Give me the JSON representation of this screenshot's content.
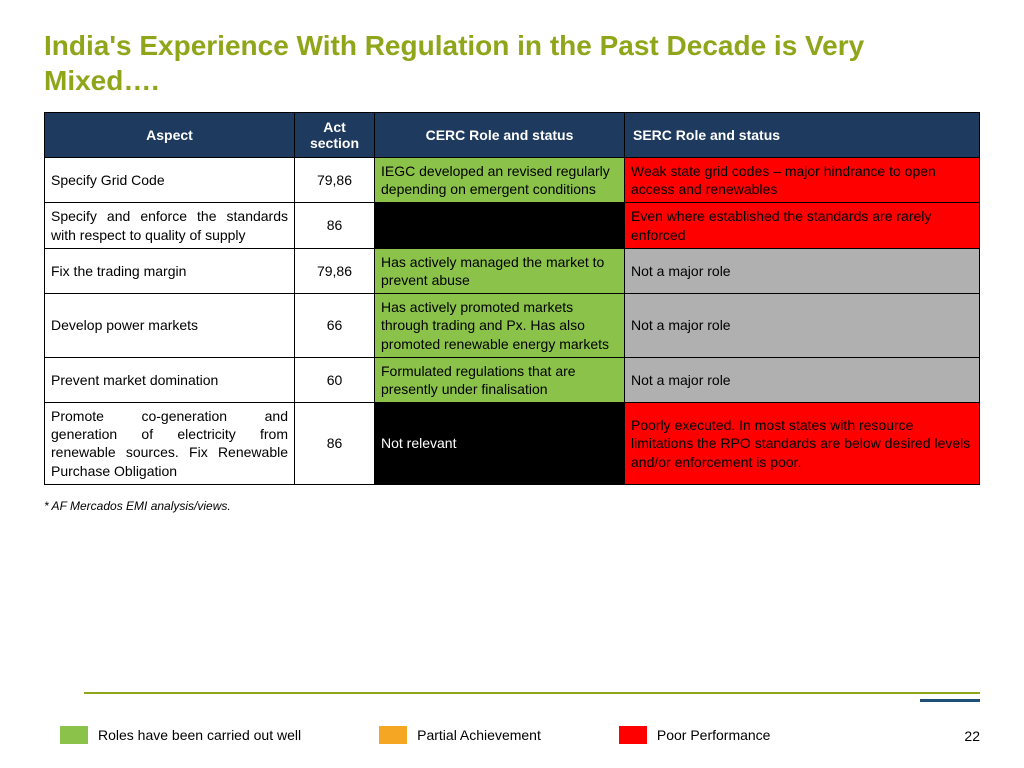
{
  "title": "India's Experience With Regulation in the Past Decade is Very Mixed….",
  "title_color": "#8fa61a",
  "table": {
    "header_bg": "#1f3a5f",
    "header_fg": "#ffffff",
    "columns": [
      "Aspect",
      "Act section",
      "CERC Role and status",
      "SERC Role and status"
    ],
    "status_colors": {
      "good": "#8bc34a",
      "poor": "#ff0000",
      "na_gray": "#b0b0b0",
      "na_black": "#000000",
      "white": "#ffffff"
    },
    "rows": [
      {
        "aspect": "Specify Grid Code",
        "aspect_justify": false,
        "act": "79,86",
        "cerc": "IEGC developed an revised regularly depending on emergent conditions",
        "cerc_bg": "good",
        "cerc_fg": "#000000",
        "serc": "Weak state grid codes – major hindrance to open access and renewables",
        "serc_bg": "poor",
        "serc_fg": "#000000"
      },
      {
        "aspect": "Specify and enforce the standards with respect to quality of supply",
        "aspect_justify": true,
        "act": "86",
        "cerc": "",
        "cerc_bg": "na_black",
        "cerc_fg": "#ffffff",
        "serc": "Even where established the standards are rarely enforced",
        "serc_bg": "poor",
        "serc_fg": "#000000"
      },
      {
        "aspect": "Fix the trading margin",
        "aspect_justify": false,
        "act": "79,86",
        "cerc": "Has actively managed the market to prevent abuse",
        "cerc_bg": "good",
        "cerc_fg": "#000000",
        "serc": "Not a major role",
        "serc_bg": "na_gray",
        "serc_fg": "#000000"
      },
      {
        "aspect": "Develop power markets",
        "aspect_justify": false,
        "act": "66",
        "cerc": "Has actively promoted markets through trading and Px.  Has also promoted renewable energy markets",
        "cerc_bg": "good",
        "cerc_fg": "#000000",
        "serc": "Not a major role",
        "serc_bg": "na_gray",
        "serc_fg": "#000000"
      },
      {
        "aspect": "Prevent market domination",
        "aspect_justify": false,
        "act": "60",
        "cerc": "Formulated regulations that are presently under finalisation",
        "cerc_bg": "good",
        "cerc_fg": "#000000",
        "serc": "Not a major role",
        "serc_bg": "na_gray",
        "serc_fg": "#000000"
      },
      {
        "aspect": "Promote co-generation and generation of electricity from renewable sources. Fix Renewable Purchase Obligation",
        "aspect_justify": true,
        "act": "86",
        "cerc": "Not relevant",
        "cerc_bg": "na_black",
        "cerc_fg": "#ffffff",
        "serc": "Poorly executed.  In most states with resource limitations the RPO standards are below desired levels and/or enforcement is poor.",
        "serc_bg": "poor",
        "serc_fg": "#000000"
      }
    ]
  },
  "footnote": "* AF Mercados EMI analysis/views.",
  "legend": [
    {
      "color": "#8bc34a",
      "label": "Roles have been carried out well"
    },
    {
      "color": "#f5a623",
      "label": "Partial Achievement"
    },
    {
      "color": "#ff0000",
      "label": "Poor Performance"
    }
  ],
  "page_number": "22",
  "accent_line_color": "#8fa61a"
}
